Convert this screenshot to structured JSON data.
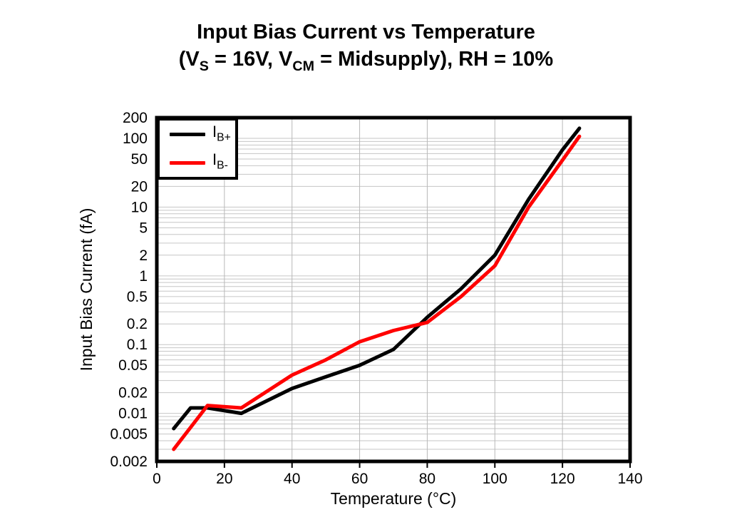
{
  "title": {
    "line1": "Input Bias Current vs Temperature",
    "line2_parts": [
      "(V",
      "S",
      " = 16V, V",
      "CM",
      " = Midsupply), RH = 10%"
    ]
  },
  "chart_data": {
    "type": "line",
    "title": "Input Bias Current vs Temperature (VS = 16V, VCM = Midsupply), RH = 10%",
    "xlabel": "Temperature (°C)",
    "ylabel": "Input Bias Current (fA)",
    "x_axis": {
      "min": 0,
      "max": 140,
      "ticks": [
        0,
        20,
        40,
        60,
        80,
        100,
        120,
        140
      ],
      "tick_labels": [
        "0",
        "20",
        "40",
        "60",
        "80",
        "100",
        "120",
        "140"
      ]
    },
    "y_axis": {
      "scale": "log",
      "min": 0.002,
      "max": 200,
      "unit": "fA",
      "tick_values": [
        200,
        100,
        50,
        20,
        10,
        5,
        2,
        1,
        0.5,
        0.2,
        0.1,
        0.05,
        0.02,
        0.01,
        0.005,
        0.002
      ],
      "tick_labels": [
        "200",
        "100",
        "50",
        "20",
        "10",
        "5",
        "2",
        "1",
        "0.5",
        "0.2",
        "0.1",
        "0.05",
        "0.02",
        "0.01",
        "0.005",
        "0.002"
      ]
    },
    "grid": {
      "horizontal_color": "#c6c6c6",
      "vertical_color": "#b8b8b8",
      "minor_log_grid": true
    },
    "legend_position": "top-left",
    "series": [
      {
        "name": "IB+",
        "legend_main": "I",
        "legend_sub": "B+",
        "color": "#000000",
        "points": [
          [
            5,
            0.006
          ],
          [
            10,
            0.012
          ],
          [
            15,
            0.012
          ],
          [
            25,
            0.01
          ],
          [
            40,
            0.023
          ],
          [
            50,
            0.034
          ],
          [
            60,
            0.05
          ],
          [
            70,
            0.085
          ],
          [
            80,
            0.25
          ],
          [
            90,
            0.65
          ],
          [
            100,
            2.0
          ],
          [
            110,
            13
          ],
          [
            120,
            68
          ],
          [
            125,
            140
          ]
        ]
      },
      {
        "name": "IB-",
        "legend_main": "I",
        "legend_sub": "B-",
        "color": "#ff0000",
        "points": [
          [
            5,
            0.003
          ],
          [
            15,
            0.013
          ],
          [
            25,
            0.012
          ],
          [
            40,
            0.036
          ],
          [
            50,
            0.06
          ],
          [
            60,
            0.11
          ],
          [
            70,
            0.16
          ],
          [
            80,
            0.21
          ],
          [
            90,
            0.5
          ],
          [
            100,
            1.4
          ],
          [
            110,
            10
          ],
          [
            120,
            48
          ],
          [
            125,
            107
          ]
        ]
      }
    ],
    "frame_color": "#000000"
  }
}
